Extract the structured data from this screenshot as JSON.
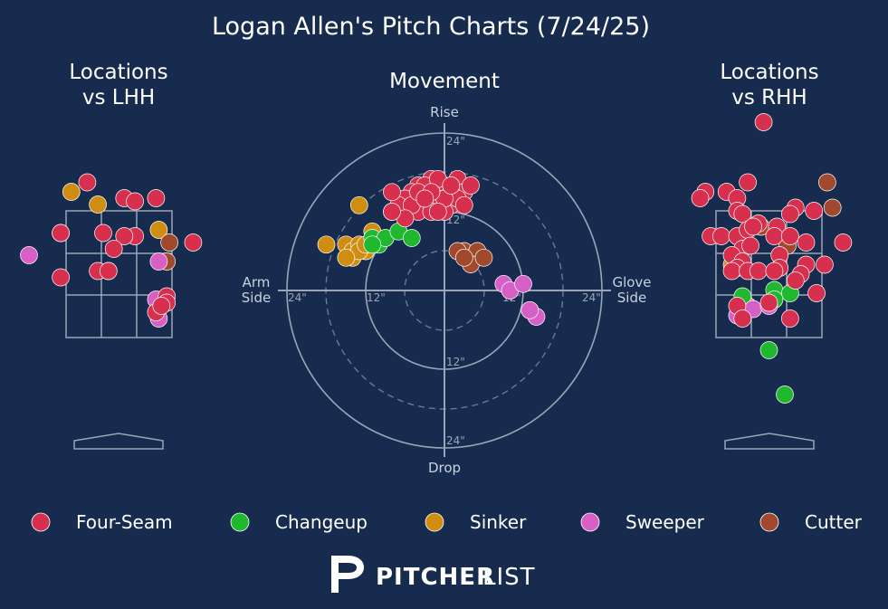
{
  "title": "Logan Allen's Pitch Charts (7/24/25)",
  "panels": {
    "lhh_title_line1": "Locations",
    "lhh_title_line2": "vs LHH",
    "movement_title": "Movement",
    "rhh_title_line1": "Locations",
    "rhh_title_line2": "vs RHH"
  },
  "movement_axes": {
    "top": "Rise",
    "bottom": "Drop",
    "left_line1": "Arm",
    "left_line2": "Side",
    "right_line1": "Glove",
    "right_line2": "Side",
    "ring_labels": [
      "24\"",
      "12\"",
      "12\"",
      "24\"",
      "12\"",
      "12\"",
      "24\"",
      "24\""
    ]
  },
  "legend": [
    {
      "name": "Four-Seam",
      "color": "#d7304f"
    },
    {
      "name": "Changeup",
      "color": "#1fb82e"
    },
    {
      "name": "Sinker",
      "color": "#cf8d11"
    },
    {
      "name": "Sweeper",
      "color": "#d660c6"
    },
    {
      "name": "Cutter",
      "color": "#a0492d"
    }
  ],
  "logo": {
    "bold": "PITCHER",
    "light": "LIST"
  },
  "chart_data": [
    {
      "type": "scatter",
      "name": "movement",
      "xlim": [
        -24,
        24
      ],
      "ylim": [
        -24,
        24
      ],
      "unit": "inches",
      "points": {
        "Four-Seam": [
          [
            -4,
            16
          ],
          [
            -2,
            17
          ],
          [
            0,
            16
          ],
          [
            2,
            17
          ],
          [
            3,
            15
          ],
          [
            -5,
            15
          ],
          [
            -1,
            14
          ],
          [
            1,
            13
          ],
          [
            -3,
            13
          ],
          [
            0,
            12
          ],
          [
            -6,
            14
          ],
          [
            -7,
            13
          ],
          [
            -8,
            15
          ],
          [
            -4,
            12
          ],
          [
            -2,
            12
          ],
          [
            1,
            15
          ],
          [
            -3,
            16
          ],
          [
            -1,
            17
          ],
          [
            2,
            14
          ],
          [
            3,
            13
          ],
          [
            -5,
            13
          ],
          [
            -6,
            11
          ],
          [
            -8,
            12
          ],
          [
            -4,
            15
          ],
          [
            0,
            14
          ],
          [
            -2,
            15
          ],
          [
            4,
            16
          ],
          [
            -3,
            14
          ],
          [
            1,
            16
          ],
          [
            -1,
            12
          ]
        ],
        "Changeup": [
          [
            -11,
            8
          ],
          [
            -10,
            7
          ],
          [
            -9,
            8
          ],
          [
            -11,
            7
          ],
          [
            -7,
            9
          ],
          [
            -5,
            8
          ],
          [
            -8,
            12
          ]
        ],
        "Sinker": [
          [
            -15,
            7
          ],
          [
            -14,
            6
          ],
          [
            -13,
            7
          ],
          [
            -12,
            6
          ],
          [
            -11,
            9
          ],
          [
            -14,
            5
          ],
          [
            -13,
            6
          ],
          [
            -15,
            5
          ],
          [
            -18,
            7
          ],
          [
            -13,
            13
          ],
          [
            -12,
            7
          ]
        ],
        "Sweeper": [
          [
            9,
            1
          ],
          [
            10,
            0
          ],
          [
            12,
            1
          ],
          [
            13,
            -3
          ],
          [
            14,
            -4
          ],
          [
            13,
            -3
          ]
        ],
        "Cutter": [
          [
            3,
            6
          ],
          [
            4,
            5
          ],
          [
            5,
            6
          ],
          [
            4,
            4
          ],
          [
            6,
            5
          ],
          [
            2,
            6
          ],
          [
            3,
            5
          ]
        ]
      }
    },
    {
      "type": "scatter",
      "name": "locations_vs_lhh",
      "unit": "strike-zone normalized",
      "points": {
        "Four-Seam": [
          [
            -0.6,
            1.45
          ],
          [
            0.1,
            1.2
          ],
          [
            0.3,
            1.15
          ],
          [
            0.7,
            1.2
          ],
          [
            -1.1,
            0.65
          ],
          [
            -0.3,
            0.65
          ],
          [
            0.3,
            0.6
          ],
          [
            0.1,
            0.6
          ],
          [
            -0.1,
            0.4
          ],
          [
            -0.4,
            0.05
          ],
          [
            -0.2,
            0.05
          ],
          [
            -1.1,
            -0.05
          ],
          [
            1.4,
            0.5
          ],
          [
            0.9,
            -0.35
          ],
          [
            0.7,
            -0.6
          ],
          [
            0.9,
            -0.45
          ],
          [
            0.8,
            -0.5
          ]
        ],
        "Changeup": [],
        "Sinker": [
          [
            -0.9,
            1.3
          ],
          [
            -0.4,
            1.1
          ],
          [
            -1.1,
            0.65
          ],
          [
            0.75,
            0.7
          ],
          [
            -0.2,
            0.05
          ],
          [
            0.85,
            -0.45
          ]
        ],
        "Sweeper": [
          [
            -1.7,
            0.3
          ],
          [
            0.75,
            0.2
          ],
          [
            0.7,
            -0.4
          ],
          [
            0.75,
            -0.7
          ]
        ],
        "Cutter": [
          [
            0.95,
            0.5
          ],
          [
            0.9,
            0.2
          ]
        ]
      }
    },
    {
      "type": "scatter",
      "name": "locations_vs_rhh",
      "unit": "strike-zone normalized",
      "points": {
        "Four-Seam": [
          [
            -0.1,
            2.4
          ],
          [
            -1.2,
            1.3
          ],
          [
            -0.8,
            1.3
          ],
          [
            -0.4,
            1.45
          ],
          [
            -0.6,
            1.2
          ],
          [
            -1.3,
            1.2
          ],
          [
            -0.6,
            1.0
          ],
          [
            0.5,
            1.05
          ],
          [
            0.85,
            1.0
          ],
          [
            -0.5,
            0.95
          ],
          [
            0.4,
            0.95
          ],
          [
            -0.2,
            0.8
          ],
          [
            -1.1,
            0.6
          ],
          [
            -0.9,
            0.6
          ],
          [
            -0.6,
            0.6
          ],
          [
            -0.4,
            0.7
          ],
          [
            -0.3,
            0.75
          ],
          [
            0.15,
            0.75
          ],
          [
            0.1,
            0.6
          ],
          [
            0.4,
            0.6
          ],
          [
            -0.5,
            0.4
          ],
          [
            -0.35,
            0.45
          ],
          [
            -0.7,
            0.3
          ],
          [
            -0.5,
            0.2
          ],
          [
            0.2,
            0.3
          ],
          [
            0.7,
            0.5
          ],
          [
            -0.6,
            0.1
          ],
          [
            -0.7,
            0.05
          ],
          [
            -0.4,
            0.05
          ],
          [
            0.2,
            0.1
          ],
          [
            0.7,
            0.15
          ],
          [
            1.4,
            0.5
          ],
          [
            0.6,
            0.0
          ],
          [
            1.05,
            0.15
          ],
          [
            -0.2,
            0.05
          ],
          [
            0.1,
            0.05
          ],
          [
            0.5,
            -0.1
          ],
          [
            0.9,
            -0.3
          ],
          [
            0.0,
            -0.45
          ],
          [
            -0.6,
            -0.5
          ],
          [
            -0.5,
            -0.7
          ],
          [
            0.4,
            -0.7
          ]
        ],
        "Changeup": [
          [
            0.1,
            -0.25
          ],
          [
            0.4,
            -0.3
          ],
          [
            -0.5,
            -0.35
          ],
          [
            0.1,
            -0.4
          ],
          [
            0.0,
            -1.2
          ],
          [
            0.3,
            -1.9
          ]
        ],
        "Sinker": [
          [
            -0.7,
            0.15
          ],
          [
            -0.4,
            -0.5
          ]
        ],
        "Sweeper": [
          [
            -0.3,
            -0.55
          ],
          [
            0.0,
            -0.5
          ],
          [
            -0.6,
            -0.65
          ]
        ],
        "Cutter": [
          [
            1.1,
            1.45
          ],
          [
            1.2,
            1.05
          ],
          [
            -0.15,
            0.75
          ],
          [
            0.35,
            0.45
          ]
        ]
      }
    }
  ]
}
